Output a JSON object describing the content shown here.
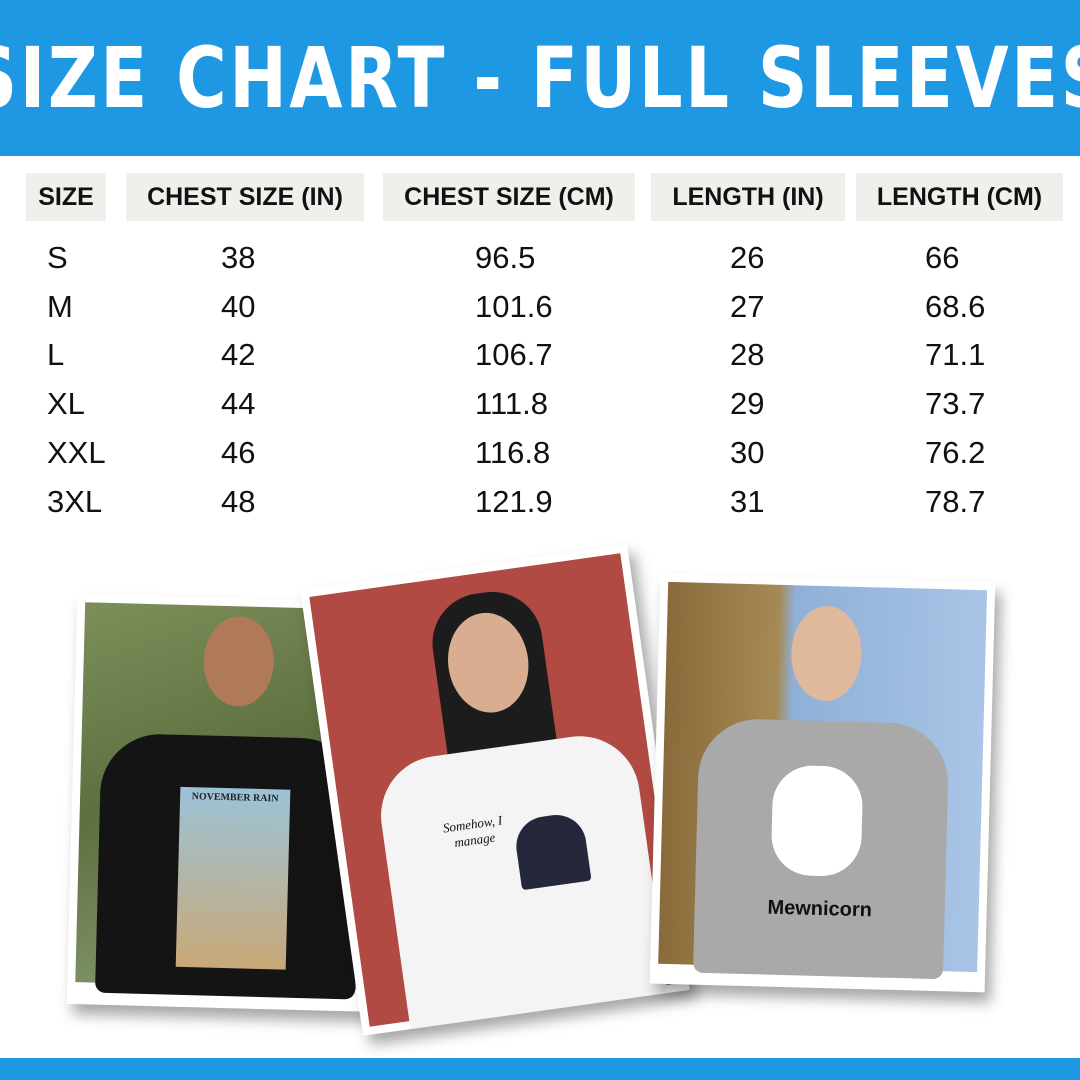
{
  "title": "SIZE CHART - FULL SLEEVES",
  "colors": {
    "brand_blue": "#1e98e3",
    "header_cell_bg": "#f0efeb"
  },
  "table": {
    "headers": [
      "SIZE",
      "CHEST SIZE (IN)",
      "CHEST SIZE (CM)",
      "LENGTH (IN)",
      "LENGTH (CM)"
    ],
    "rows": [
      [
        "S",
        "38",
        "96.5",
        "26",
        "66"
      ],
      [
        "M",
        "40",
        "101.6",
        "27",
        "68.6"
      ],
      [
        "L",
        "42",
        "106.7",
        "28",
        "71.1"
      ],
      [
        "XL",
        "44",
        "111.8",
        "29",
        "73.7"
      ],
      [
        "XXL",
        "46",
        "116.8",
        "30",
        "76.2"
      ],
      [
        "3XL",
        "48",
        "121.9",
        "31",
        "78.7"
      ]
    ]
  },
  "photos": [
    {
      "print_text": "NOVEMBER RAIN",
      "shirt_color": "black"
    },
    {
      "print_text": "Somehow, I manage",
      "shirt_color": "white"
    },
    {
      "print_text": "Mewnicorn",
      "shirt_color": "grey"
    }
  ]
}
